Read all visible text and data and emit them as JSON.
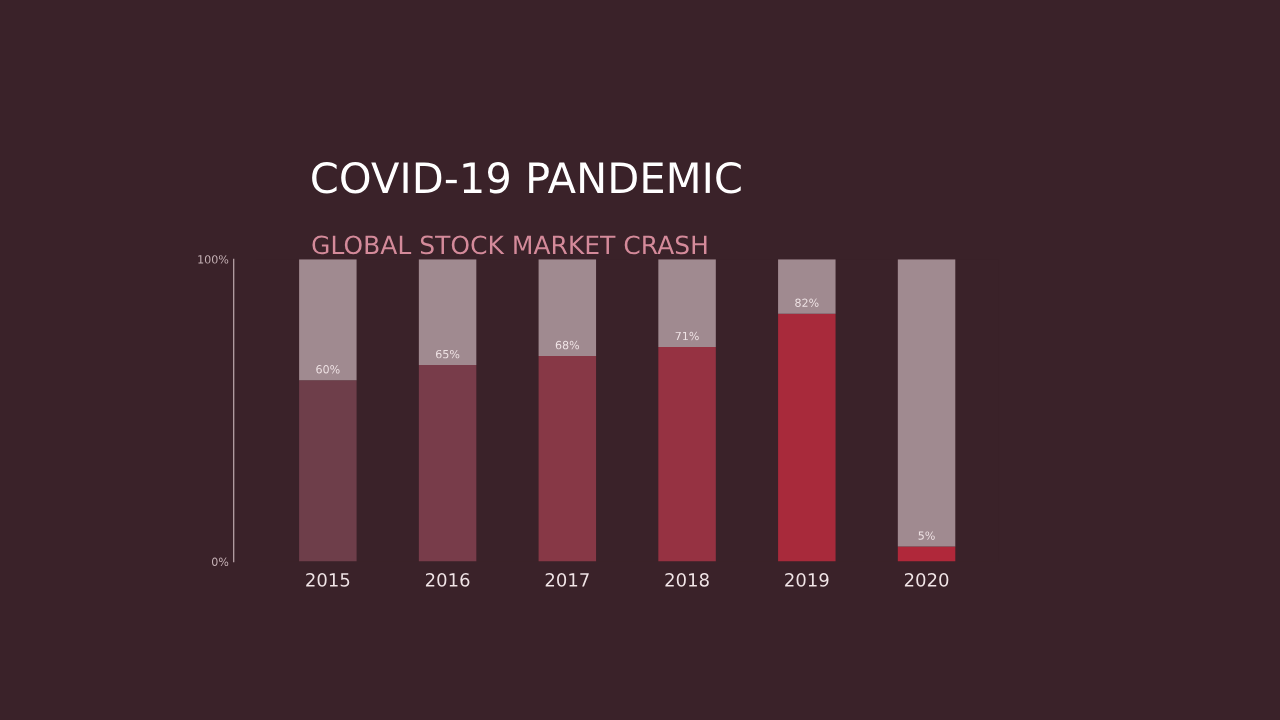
{
  "chart_data": {
    "type": "bar",
    "title": "COVID-19 PANDEMIC",
    "subtitle": "GLOBAL STOCK MARKET CRASH",
    "categories": [
      "2015",
      "2016",
      "2017",
      "2018",
      "2019",
      "2020"
    ],
    "stacked": true,
    "series": [
      {
        "colors": [
          "#6e3e4a",
          "#783c4a",
          "#873846",
          "#963242",
          "#a82a3b",
          "#b0283a"
        ],
        "values": [
          60,
          65,
          68,
          71,
          82,
          5
        ],
        "value_labels": [
          "60%",
          "65%",
          "68%",
          "71%",
          "82%",
          "5%"
        ]
      },
      {
        "color": "#a08a90",
        "values": [
          40,
          35,
          32,
          29,
          18,
          95
        ]
      }
    ],
    "ylim": [
      0,
      100
    ],
    "yticks": [
      {
        "value": 0,
        "label": "0%"
      },
      {
        "value": 100,
        "label": "100%"
      }
    ],
    "grid": false,
    "legend": false
  }
}
